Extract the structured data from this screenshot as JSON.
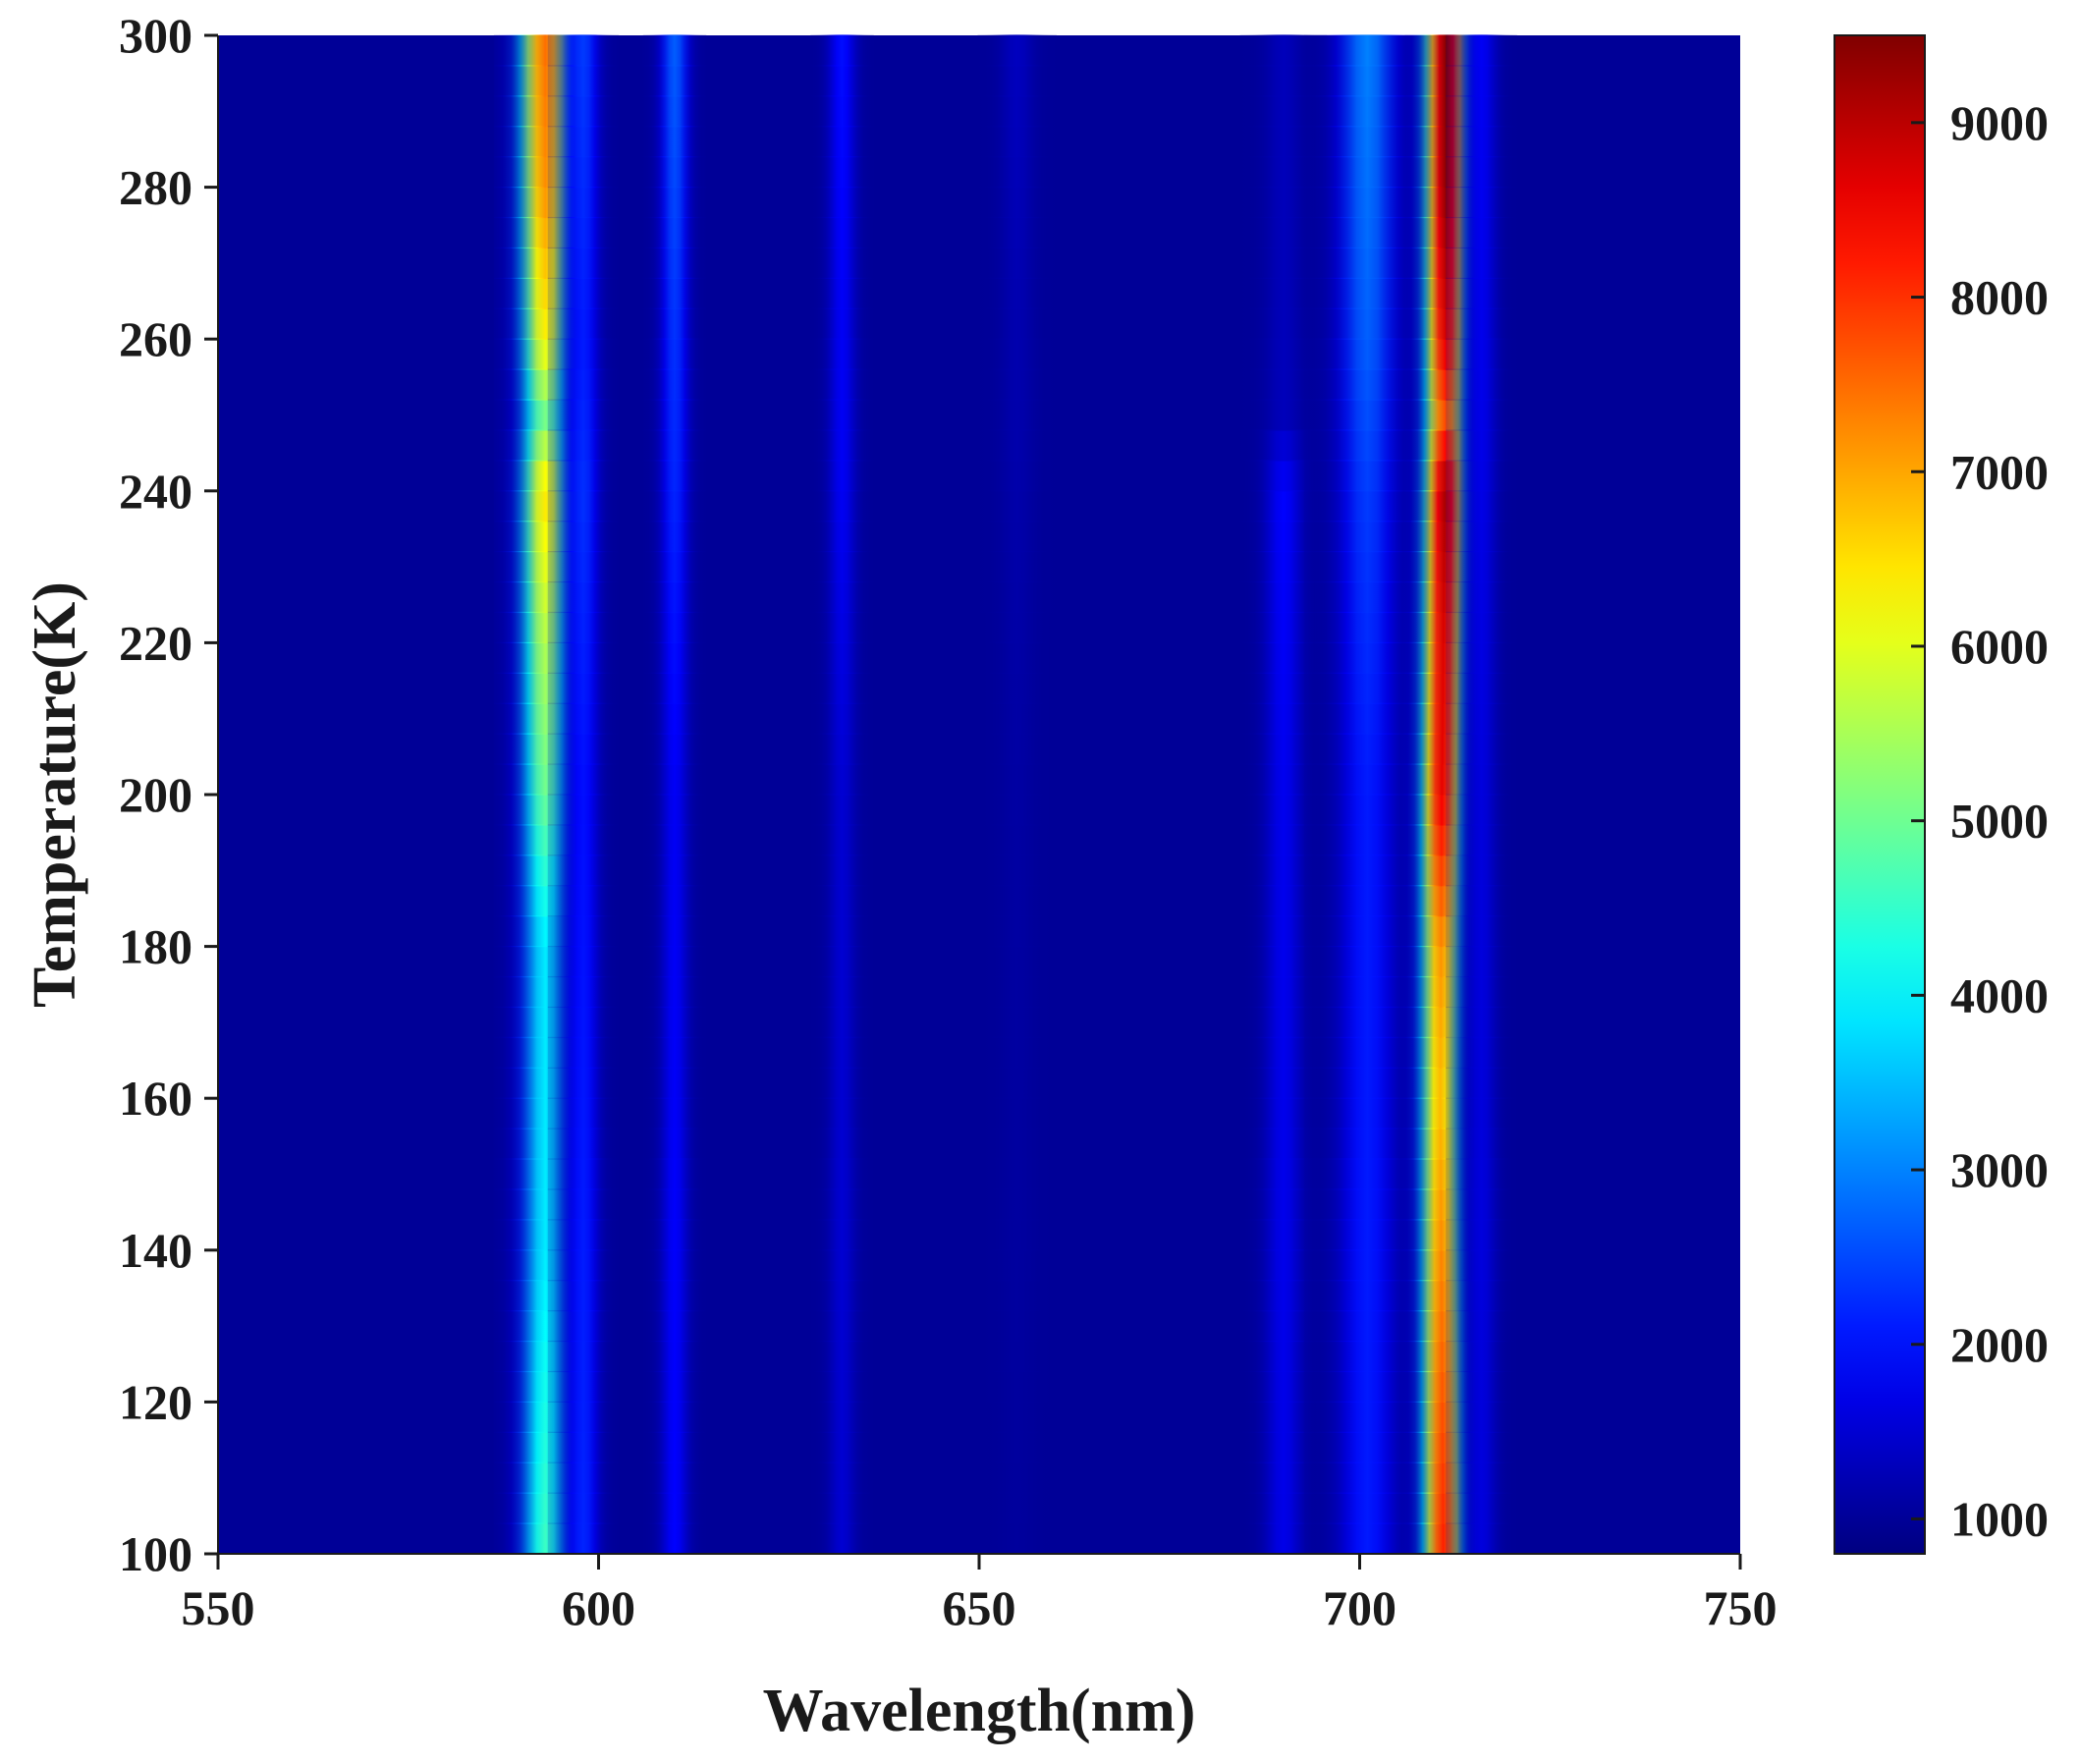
{
  "chart_data": {
    "type": "heatmap",
    "title": "",
    "xlabel": "Wavelength(nm)",
    "ylabel": "Temperature(K)",
    "xlim": [
      550,
      750
    ],
    "ylim": [
      100,
      300
    ],
    "x_ticks": [
      "550",
      "600",
      "650",
      "700",
      "750"
    ],
    "x_tick_values": [
      550,
      600,
      650,
      700,
      750
    ],
    "y_ticks": [
      "100",
      "120",
      "140",
      "160",
      "180",
      "200",
      "220",
      "240",
      "260",
      "280",
      "300"
    ],
    "y_tick_values": [
      100,
      120,
      140,
      160,
      180,
      200,
      220,
      240,
      260,
      280,
      300
    ],
    "grid": false,
    "colormap": "jet",
    "colorbar": {
      "range": [
        800,
        9500
      ],
      "ticks": [
        "1000",
        "2000",
        "3000",
        "4000",
        "5000",
        "6000",
        "7000",
        "8000",
        "9000"
      ],
      "tick_values": [
        1000,
        2000,
        3000,
        4000,
        5000,
        6000,
        7000,
        8000,
        9000
      ]
    },
    "background_intensity": 1000,
    "bands": [
      {
        "center_nm": 593,
        "width_nm": 2.6,
        "intensity_by_temperature": [
          [
            100,
            4600
          ],
          [
            140,
            3900
          ],
          [
            180,
            3900
          ],
          [
            200,
            5000
          ],
          [
            220,
            5600
          ],
          [
            240,
            6500
          ],
          [
            250,
            5100
          ],
          [
            260,
            6300
          ],
          [
            280,
            7200
          ],
          [
            300,
            7500
          ]
        ]
      },
      {
        "center_nm": 598,
        "width_nm": 1.8,
        "intensity_by_temperature": [
          [
            100,
            2200
          ],
          [
            200,
            2000
          ],
          [
            240,
            2300
          ],
          [
            260,
            2100
          ],
          [
            300,
            2400
          ]
        ]
      },
      {
        "center_nm": 610,
        "width_nm": 1.6,
        "intensity_by_temperature": [
          [
            100,
            1900
          ],
          [
            200,
            1800
          ],
          [
            240,
            2200
          ],
          [
            260,
            2300
          ],
          [
            300,
            2700
          ]
        ]
      },
      {
        "center_nm": 632,
        "width_nm": 1.6,
        "intensity_by_temperature": [
          [
            100,
            1500
          ],
          [
            200,
            1500
          ],
          [
            240,
            1800
          ],
          [
            260,
            1800
          ],
          [
            300,
            2000
          ]
        ]
      },
      {
        "center_nm": 655,
        "width_nm": 2.0,
        "intensity_by_temperature": [
          [
            100,
            1050
          ],
          [
            200,
            1100
          ],
          [
            260,
            1200
          ],
          [
            300,
            1350
          ]
        ]
      },
      {
        "center_nm": 690,
        "width_nm": 2.2,
        "intensity_by_temperature": [
          [
            100,
            1700
          ],
          [
            200,
            1750
          ],
          [
            240,
            1900
          ],
          [
            250,
            1300
          ],
          [
            300,
            1300
          ]
        ]
      },
      {
        "center_nm": 701,
        "width_nm": 3.2,
        "intensity_by_temperature": [
          [
            100,
            2100
          ],
          [
            200,
            2100
          ],
          [
            240,
            2400
          ],
          [
            260,
            2700
          ],
          [
            300,
            3000
          ]
        ]
      },
      {
        "center_nm": 711,
        "width_nm": 2.1,
        "intensity_by_temperature": [
          [
            100,
            8200
          ],
          [
            160,
            6800
          ],
          [
            180,
            7200
          ],
          [
            200,
            8600
          ],
          [
            220,
            8700
          ],
          [
            240,
            9200
          ],
          [
            250,
            7800
          ],
          [
            260,
            8700
          ],
          [
            280,
            9400
          ],
          [
            300,
            9500
          ]
        ]
      },
      {
        "center_nm": 716,
        "width_nm": 1.8,
        "intensity_by_temperature": [
          [
            100,
            1600
          ],
          [
            200,
            1600
          ],
          [
            300,
            1800
          ]
        ]
      }
    ],
    "band_center_shift": [
      [
        100,
        711
      ],
      [
        160,
        710.6
      ],
      [
        200,
        710.8
      ],
      [
        240,
        711.2
      ],
      [
        300,
        711.4
      ]
    ]
  }
}
